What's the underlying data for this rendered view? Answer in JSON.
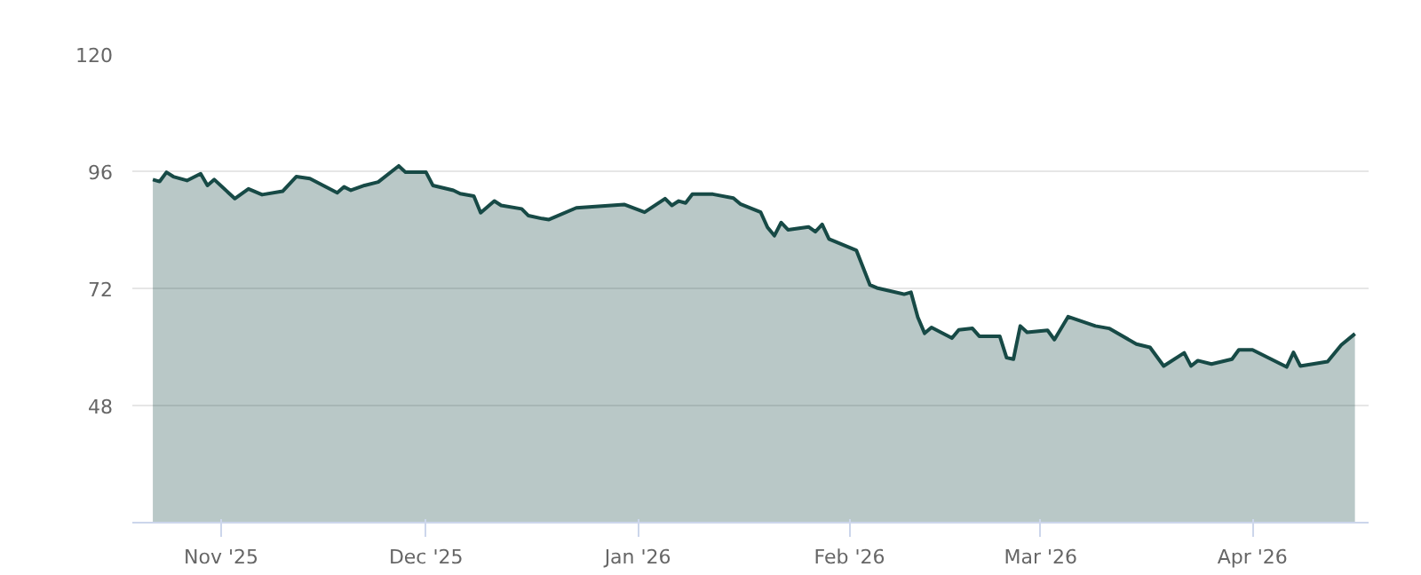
{
  "chart_data": {
    "type": "area",
    "x": [
      "2025-10-22",
      "2025-10-23",
      "2025-10-24",
      "2025-10-25",
      "2025-10-27",
      "2025-10-29",
      "2025-10-30",
      "2025-10-31",
      "2025-11-03",
      "2025-11-05",
      "2025-11-07",
      "2025-11-10",
      "2025-11-12",
      "2025-11-14",
      "2025-11-18",
      "2025-11-19",
      "2025-11-20",
      "2025-11-22",
      "2025-11-24",
      "2025-11-27",
      "2025-11-28",
      "2025-12-01",
      "2025-12-02",
      "2025-12-05",
      "2025-12-06",
      "2025-12-08",
      "2025-12-09",
      "2025-12-11",
      "2025-12-12",
      "2025-12-15",
      "2025-12-16",
      "2025-12-18",
      "2025-12-19",
      "2025-12-23",
      "2025-12-30",
      "2026-01-02",
      "2026-01-05",
      "2026-01-06",
      "2026-01-07",
      "2026-01-08",
      "2026-01-09",
      "2026-01-12",
      "2026-01-15",
      "2026-01-16",
      "2026-01-19",
      "2026-01-20",
      "2026-01-21",
      "2026-01-22",
      "2026-01-23",
      "2026-01-26",
      "2026-01-27",
      "2026-01-28",
      "2026-01-29",
      "2026-02-02",
      "2026-02-04",
      "2026-02-05",
      "2026-02-09",
      "2026-02-10",
      "2026-02-11",
      "2026-02-12",
      "2026-02-13",
      "2026-02-16",
      "2026-02-17",
      "2026-02-19",
      "2026-02-20",
      "2026-02-23",
      "2026-02-24",
      "2026-02-25",
      "2026-02-26",
      "2026-02-27",
      "2026-03-02",
      "2026-03-03",
      "2026-03-05",
      "2026-03-09",
      "2026-03-11",
      "2026-03-15",
      "2026-03-17",
      "2026-03-19",
      "2026-03-22",
      "2026-03-23",
      "2026-03-24",
      "2026-03-26",
      "2026-03-29",
      "2026-03-30",
      "2026-04-01",
      "2026-04-06",
      "2026-04-07",
      "2026-04-08",
      "2026-04-12",
      "2026-04-14",
      "2026-04-16"
    ],
    "series": [
      {
        "color": "#174a46",
        "values": [
          94.3,
          93.9,
          95.8,
          94.9,
          94.1,
          95.5,
          93.1,
          94.3,
          90.4,
          92.4,
          91.2,
          91.9,
          94.9,
          94.5,
          91.6,
          92.8,
          92.1,
          93.1,
          93.8,
          97.1,
          95.8,
          95.8,
          93.1,
          92.1,
          91.4,
          90.9,
          87.5,
          89.9,
          89.0,
          88.3,
          86.9,
          86.3,
          86.1,
          88.5,
          89.2,
          87.6,
          90.4,
          89.0,
          89.9,
          89.5,
          91.3,
          91.3,
          90.5,
          89.3,
          87.6,
          84.5,
          82.8,
          85.5,
          84.0,
          84.6,
          83.6,
          85.1,
          82.1,
          79.8,
          72.7,
          72.1,
          70.8,
          71.2,
          66.1,
          62.8,
          64.0,
          61.8,
          63.5,
          63.8,
          62.2,
          62.2,
          57.8,
          57.5,
          64.3,
          63.0,
          63.4,
          61.5,
          66.2,
          64.3,
          63.8,
          60.6,
          59.9,
          56.1,
          58.8,
          56.1,
          57.2,
          56.5,
          57.5,
          59.4,
          59.4,
          55.9,
          58.9,
          56.1,
          57.0,
          60.4,
          62.7
        ]
      }
    ],
    "xlim": [
      "2025-10-19",
      "2026-04-18"
    ],
    "xticks": [
      {
        "value": "2025-11-01",
        "label": "Nov '25"
      },
      {
        "value": "2025-12-01",
        "label": "Dec '25"
      },
      {
        "value": "2026-01-01",
        "label": "Jan '26"
      },
      {
        "value": "2026-02-01",
        "label": "Feb '26"
      },
      {
        "value": "2026-03-01",
        "label": "Mar '26"
      },
      {
        "value": "2026-04-01",
        "label": "Apr '26"
      }
    ],
    "ylim": [
      24,
      120
    ],
    "yticks": [
      48,
      72,
      96,
      120
    ],
    "grid": "y"
  }
}
